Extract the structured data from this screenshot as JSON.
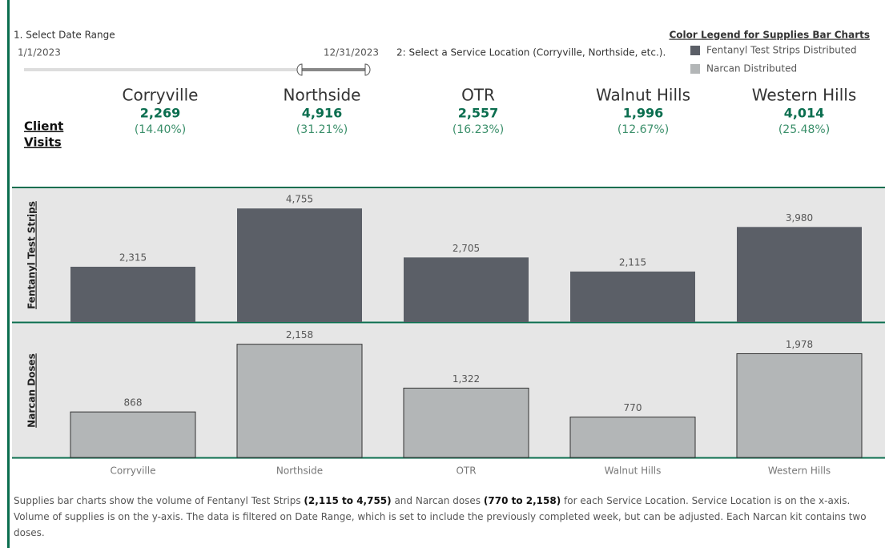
{
  "controls": {
    "date_title": "1. Select Date Range",
    "date_start": "1/1/2023",
    "date_end": "12/31/2023",
    "location_title": "2: Select a Service Location (Corryville, Northside, etc.)."
  },
  "legend_title": "Color Legend for Supplies Bar Charts",
  "kpi_title": [
    "Client",
    "Visits"
  ],
  "kpis": [
    {
      "name": "Corryville",
      "value": "2,269",
      "share": "(14.40%)"
    },
    {
      "name": "Northside",
      "value": "4,916",
      "share": "(31.21%)"
    },
    {
      "name": "OTR",
      "value": "2,557",
      "share": "(16.23%)"
    },
    {
      "name": "Walnut Hills",
      "value": "1,996",
      "share": "(12.67%)"
    },
    {
      "name": "Western Hills",
      "value": "4,014",
      "share": "(25.48%)"
    }
  ],
  "chart_data": [
    {
      "type": "bar",
      "ylabel": "Fentanyl Test Strips",
      "ylim": [
        0,
        5600
      ],
      "series": [
        {
          "name": "Fentanyl Test Strips Distributed",
          "color": "#5b5f67",
          "values": [
            2315,
            4755,
            2705,
            2115,
            3980
          ],
          "value_labels": [
            "2,315",
            "4,755",
            "2,705",
            "2,115",
            "3,980"
          ]
        }
      ]
    },
    {
      "type": "bar",
      "ylabel": "Narcan Doses",
      "ylim": [
        0,
        2550
      ],
      "categories": [
        "Corryville",
        "Northside",
        "OTR",
        "Walnut Hills",
        "Western Hills"
      ],
      "series": [
        {
          "name": "Narcan Distributed",
          "color": "#b3b6b7",
          "values": [
            868,
            2158,
            1322,
            770,
            1978
          ],
          "value_labels": [
            "868",
            "2,158",
            "1,322",
            "770",
            "1,978"
          ]
        }
      ]
    }
  ],
  "footer": {
    "parts": [
      "Supplies bar charts show the volume of Fentanyl Test Strips ",
      "(2,115 to 4,755)",
      " and Narcan doses ",
      "(770 to 2,158)",
      " for each Service Location. Service Location is on the x-axis. Volume of supplies is on the y-axis. The data is filtered on Date Range, which is set to include the previously completed week, but can be adjusted. Each Narcan kit contains two doses."
    ]
  }
}
